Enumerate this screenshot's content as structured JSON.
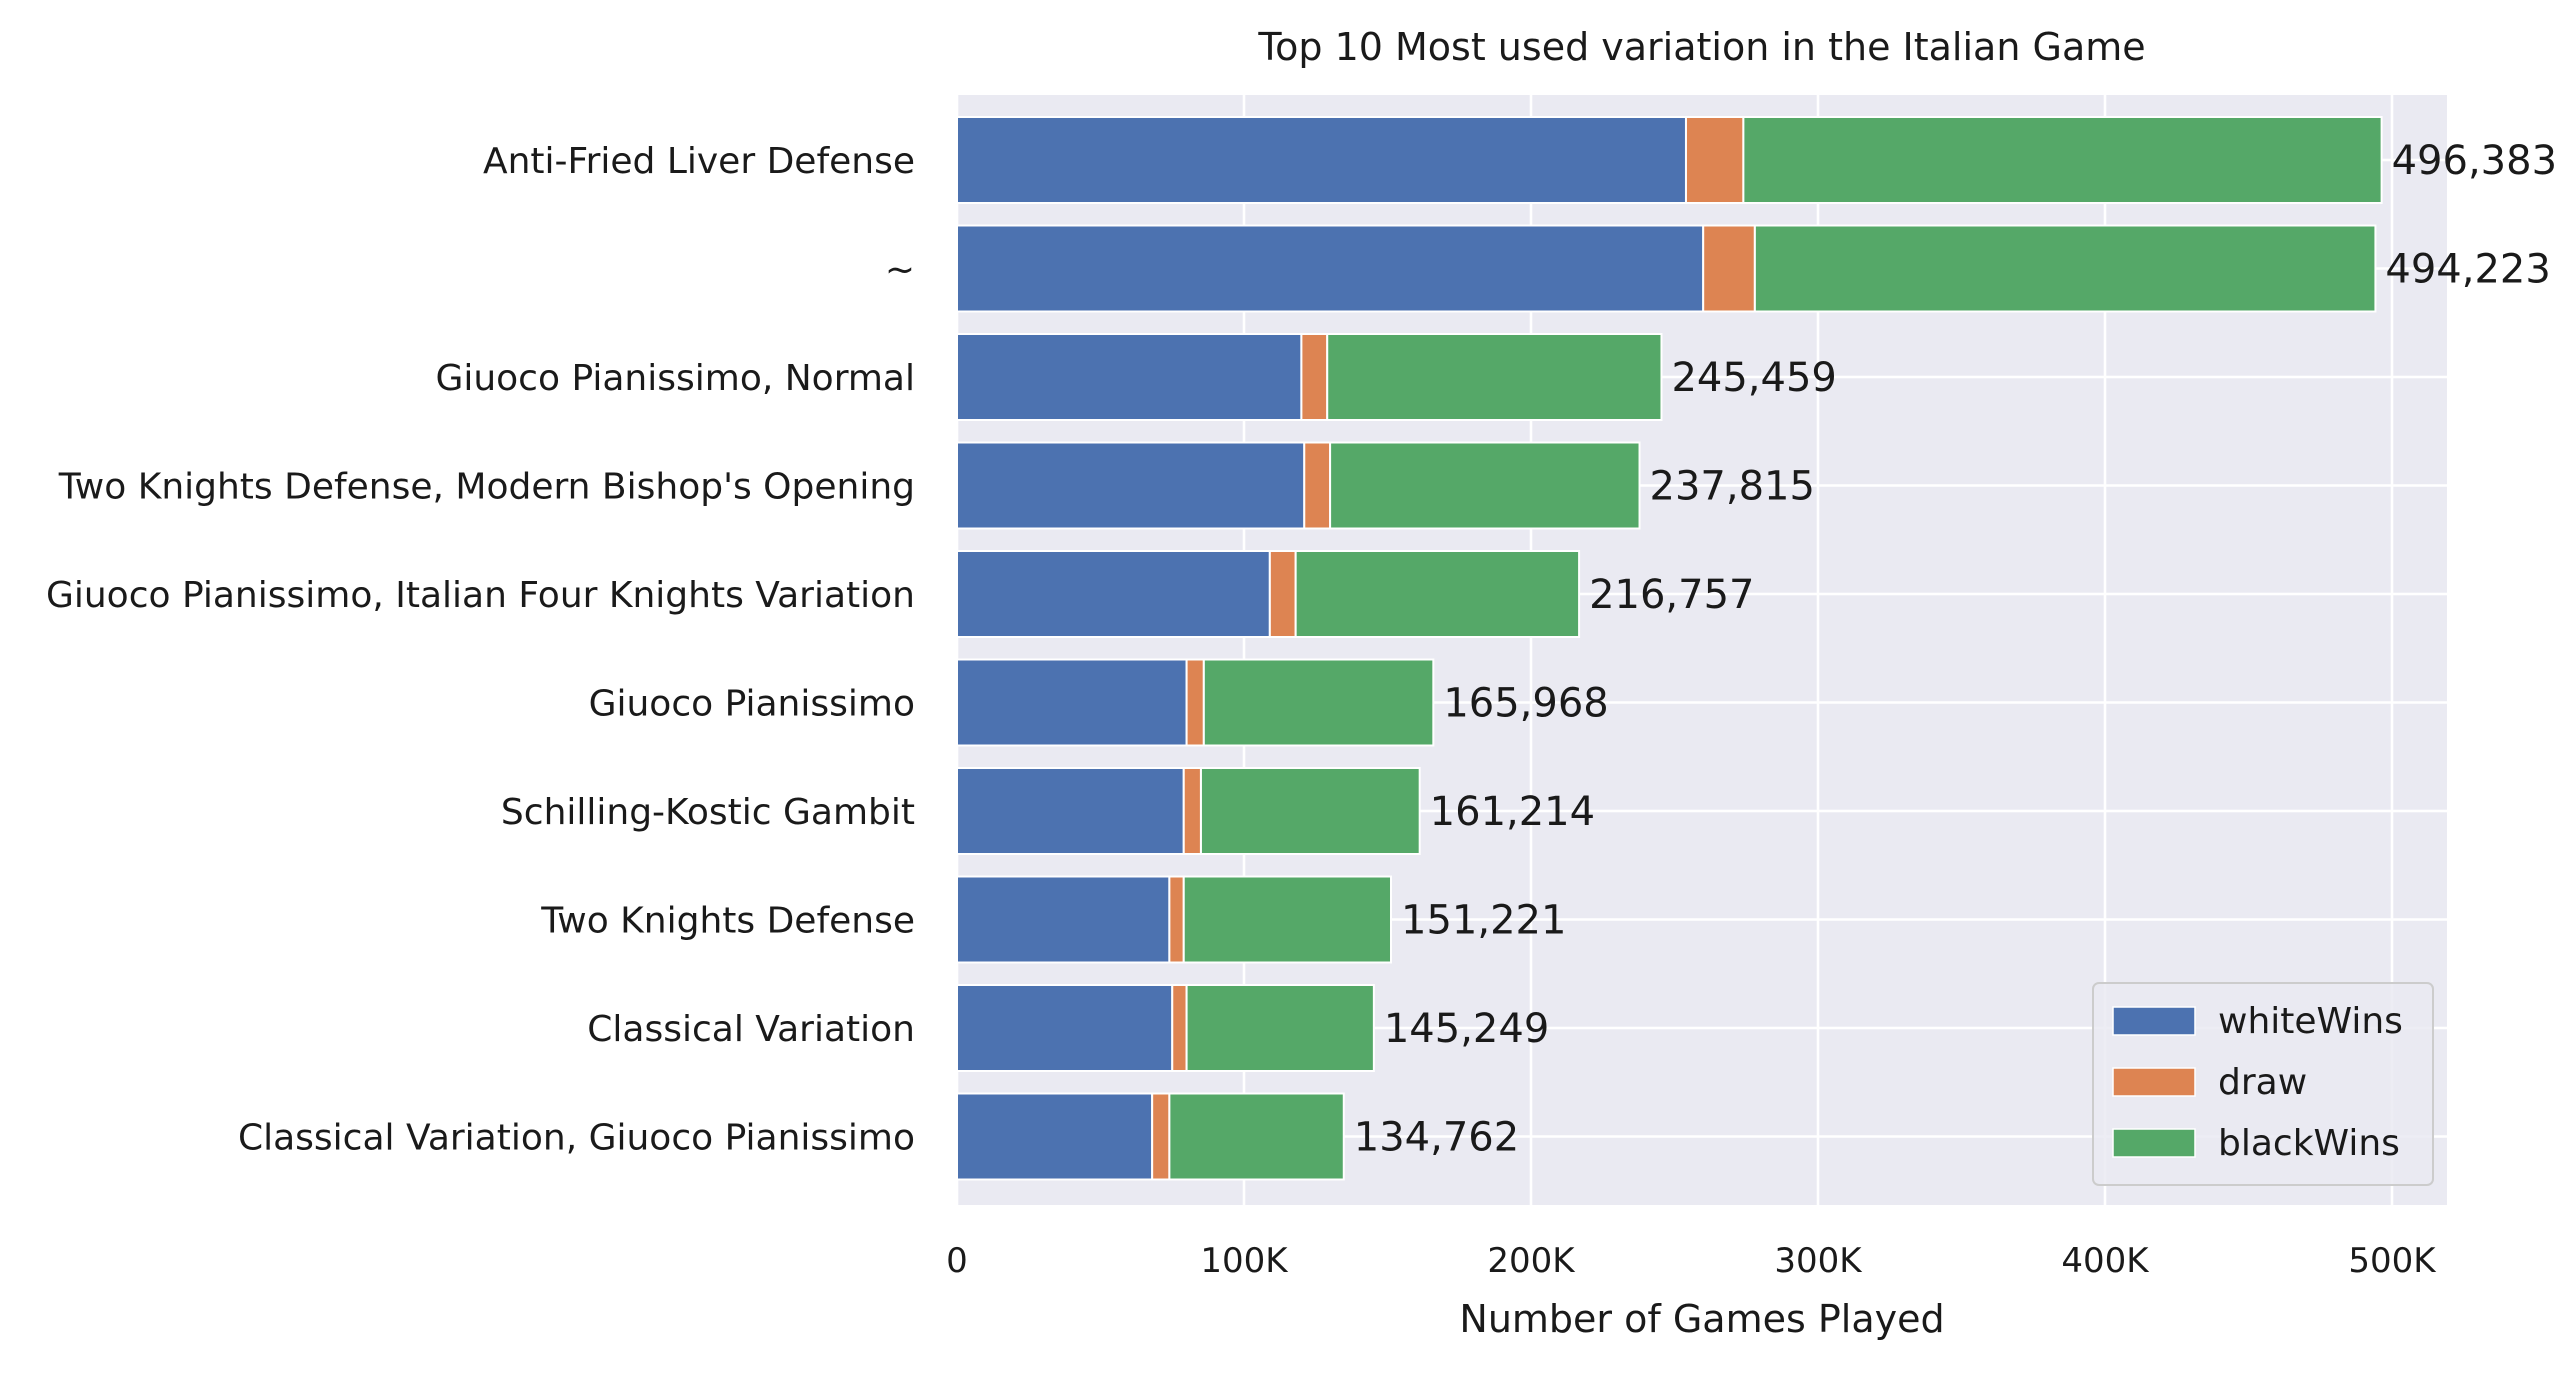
{
  "chart_data": {
    "type": "bar",
    "orientation": "horizontal",
    "stacked": true,
    "title": "Top 10 Most used variation in the Italian Game",
    "xlabel": "Number of Games Played",
    "ylabel": "",
    "xlim": [
      0,
      520000
    ],
    "xticks": [
      0,
      100000,
      200000,
      300000,
      400000,
      500000
    ],
    "xtick_labels": [
      "0",
      "100K",
      "200K",
      "300K",
      "400K",
      "500K"
    ],
    "grid": true,
    "legend_position": "bottom-right",
    "categories": [
      "Anti-Fried Liver Defense",
      "~",
      "Giuoco Pianissimo, Normal",
      "Two Knights Defense, Modern Bishop's Opening",
      "Giuoco Pianissimo, Italian Four Knights Variation",
      "Giuoco Pianissimo",
      "Schilling-Kostic Gambit",
      "Two Knights Defense",
      "Classical Variation",
      "Classical Variation, Giuoco Pianissimo"
    ],
    "series": [
      {
        "name": "whiteWins",
        "color": "#4c72b0",
        "values": [
          254000,
          260000,
          120000,
          121000,
          109000,
          80000,
          79000,
          74000,
          75000,
          68000
        ]
      },
      {
        "name": "draw",
        "color": "#dd8452",
        "values": [
          20000,
          18000,
          9000,
          9000,
          9000,
          6000,
          6000,
          5000,
          5000,
          6000
        ]
      },
      {
        "name": "blackWins",
        "color": "#55a868",
        "values": [
          222383,
          216223,
          116459,
          107815,
          98757,
          79968,
          76214,
          72221,
          65249,
          60762
        ]
      }
    ],
    "totals": [
      496383,
      494223,
      245459,
      237815,
      216757,
      165968,
      161214,
      151221,
      145249,
      134762
    ],
    "total_labels": [
      "496,383",
      "494,223",
      "245,459",
      "237,815",
      "216,757",
      "165,968",
      "161,214",
      "151,221",
      "145,249",
      "134,762"
    ]
  },
  "colors": {
    "plot_background": "#eaeaf2",
    "grid": "#ffffff",
    "text": "#1a1a1a"
  }
}
